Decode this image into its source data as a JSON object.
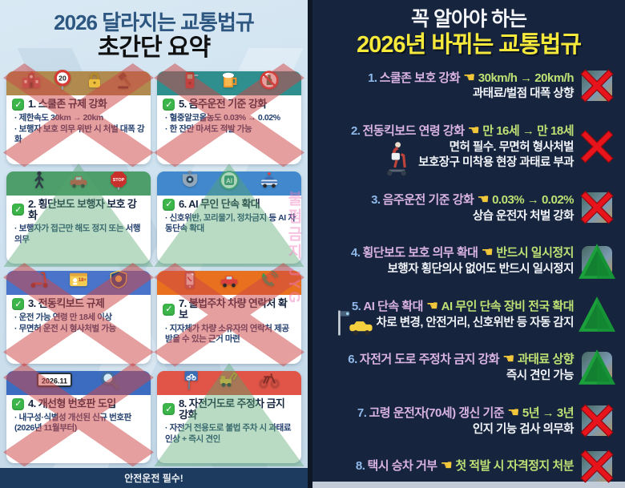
{
  "left_panel": {
    "title_line1": "2026 달라지는 교통법규",
    "title_line2": "초간단 요약",
    "check_glyph": "✓",
    "footer": "안전운전 필수!",
    "watermark": "불펌금지 JYG",
    "colors": {
      "title": "#2d5680",
      "footer_bg": "#1d3a5f",
      "check": "#3cb54a",
      "background": "#cfe2ef"
    },
    "icon_texts": {
      "speed_sign": "20",
      "stop_sign": "STOP",
      "id_card": "18+",
      "ai_chip": "AI",
      "license_plate": "2026.11"
    },
    "cards": [
      {
        "title": "1. 스쿨존 규제 강화",
        "bullets": [
          "제한속도 30km → 20km",
          "보행자 보호 의무 위반 시 처벌 대폭 강화"
        ],
        "header_color": "#b08a4f",
        "overlay": "x",
        "icons": [
          "school",
          "sign-20",
          "lock",
          "gavel"
        ]
      },
      {
        "title": "5. 음주운전 기준 강화",
        "bullets": [
          "혈중알코올농도 0.03% → 0.02%",
          "한 잔만 마셔도 적발 가능"
        ],
        "header_color": "#2f8f8f",
        "overlay": "x",
        "icons": [
          "breathalyzer",
          "beer",
          "no-alcohol"
        ]
      },
      {
        "title": "2. 횡단보도 보행자 보호 강화",
        "bullets": [
          "보행자가 접근만 해도 정지 또는 서행 의무"
        ],
        "header_color": "#4d9e6a",
        "overlay": "triangle",
        "icons": [
          "pedestrian",
          "car-red",
          "stop-sign"
        ]
      },
      {
        "title": "6. AI 무인 단속 확대",
        "bullets": [
          "신호위반, 꼬리물기, 정차금지 등 AI 자동단속 확대"
        ],
        "header_color": "#4189cc",
        "overlay": "triangle",
        "icons": [
          "cctv",
          "ai-chip",
          "police-car"
        ]
      },
      {
        "title": "3. 전동킥보드 규제",
        "bullets": [
          "운전 가능 연령 만 18세 이상",
          "무면허 운전 시 형사처벌 가능"
        ],
        "header_color": "#4a74c9",
        "overlay": "x",
        "icons": [
          "scooter",
          "id-card-18",
          "police-badge"
        ]
      },
      {
        "title": "7. 불법주차 차량 연락처 확보",
        "bullets": [
          "지자체가 차량 소유자의 연락처 제공받을 수 있는 근거 마련"
        ],
        "header_color": "#e8701f",
        "overlay": "x",
        "icons": [
          "smartphone",
          "car-red",
          "phone-handset"
        ]
      },
      {
        "title": "4. 개선형 번호판 도입",
        "bullets": [
          "내구성·식별성 개선된 신규 번호판(2026년 11월부터)"
        ],
        "header_color": "#3c6cc0",
        "overlay": "x",
        "icons": [
          "license-plate",
          "magnifier"
        ]
      },
      {
        "title": "8. 자전거도로 주정차 금지 강화",
        "bullets": [
          "자전거 전용도로 불법 주차 시 과태료 인상 + 즉시 견인"
        ],
        "header_color": "#e05548",
        "overlay": "triangle",
        "icons": [
          "bike-lane-sign",
          "tow-truck",
          "bicycle"
        ]
      }
    ]
  },
  "right_panel": {
    "title_line1": "꼭 알아야 하는",
    "title_line2": "2026년 바뀌는 교통법규",
    "hand_glyph": "☚",
    "colors": {
      "background": "#17243d",
      "heading_accent": "#f5e93b",
      "number": "#8fb9ea",
      "item_title": "#d8b3e3",
      "value": "#bfe074",
      "hand": "#f3c73a",
      "x_badge": "#e8141c",
      "triangle_badge": "#1ba03c"
    },
    "items": [
      {
        "number": "1.",
        "title": "스쿨존 보호 강화",
        "value": "30km/h → 20km/h",
        "extra_lines": [
          "과태료/벌점 대폭 상향"
        ],
        "badge": "x",
        "has_photo": true
      },
      {
        "number": "2.",
        "title": "전동킥보드 연령 강화",
        "value": "만 16세 → 만 18세",
        "extra_lines": [
          "면허 필수. 무면허 형사처벌",
          "보호장구 미착용 현장 과태료 부과"
        ],
        "badge": "x",
        "side_icon": "scooter-rider"
      },
      {
        "number": "3.",
        "title": "음주운전 기준 강화",
        "value": "0.03% → 0.02%",
        "extra_lines": [
          "상습 운전자 처벌 강화"
        ],
        "badge": "x",
        "has_photo": true
      },
      {
        "number": "4.",
        "title": "횡단보도 보호 의무 확대",
        "value": "반드시 일시정지",
        "extra_lines": [
          "보행자 횡단의사 없어도 반드시 일시정지"
        ],
        "badge": "triangle",
        "has_photo": true
      },
      {
        "number": "5.",
        "title": "AI 단속 확대",
        "value": "AI 무인 단속 장비 전국 확대",
        "extra_lines": [
          "차로 변경, 안전거리, 신호위반 등 자동 감지"
        ],
        "badge": "triangle",
        "side_icon": "cctv-car"
      },
      {
        "number": "6.",
        "title": "자전거 도로 주정차 금지 강화",
        "value": "과태료 상향",
        "extra_lines": [
          "즉시 견인 가능"
        ],
        "badge": "triangle",
        "has_photo": true
      },
      {
        "number": "7.",
        "title": "고령 운전자(70세) 갱신 기준",
        "value": "5년 → 3년",
        "extra_lines": [
          "인지 기능 검사 의무화"
        ],
        "badge": "x",
        "has_photo": true
      },
      {
        "number": "8.",
        "title": "택시 승차 거부",
        "value": "첫 적발 시 자격정지 처분",
        "extra_lines": [],
        "badge": "x",
        "has_photo": true
      }
    ]
  }
}
